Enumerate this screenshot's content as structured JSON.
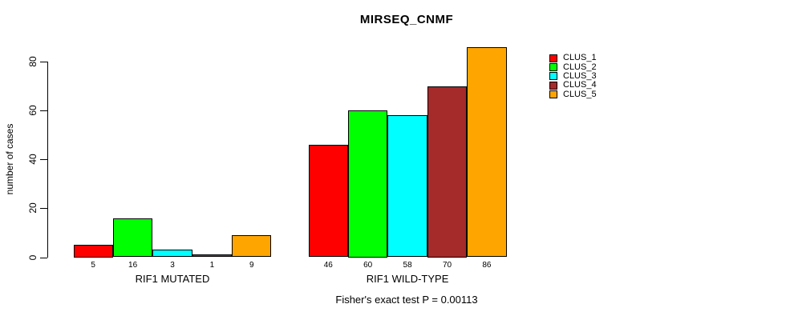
{
  "chart": {
    "title": "MIRSEQ_CNMF",
    "ylabel": "number of cases",
    "caption": "Fisher's exact test P = 0.00113"
  },
  "chart_data": {
    "type": "bar",
    "title": "MIRSEQ_CNMF",
    "xlabel": "",
    "ylabel": "number of cases",
    "groups": [
      "RIF1 MUTATED",
      "RIF1 WILD-TYPE"
    ],
    "series": [
      {
        "name": "CLUS_1",
        "color": "#FF0000",
        "values": [
          5,
          46
        ]
      },
      {
        "name": "CLUS_2",
        "color": "#00FF00",
        "values": [
          16,
          60
        ]
      },
      {
        "name": "CLUS_3",
        "color": "#00FFFF",
        "values": [
          3,
          58
        ]
      },
      {
        "name": "CLUS_4",
        "color": "#A52A2A",
        "values": [
          1,
          70
        ]
      },
      {
        "name": "CLUS_5",
        "color": "#FFA500",
        "values": [
          9,
          86
        ]
      }
    ],
    "yticks": [
      0,
      20,
      40,
      60,
      80
    ],
    "ylim": [
      0,
      86
    ],
    "bar_value_labels": true,
    "grid": false,
    "legend_position": "right-inset",
    "annotation": "Fisher's exact test P = 0.00113"
  }
}
